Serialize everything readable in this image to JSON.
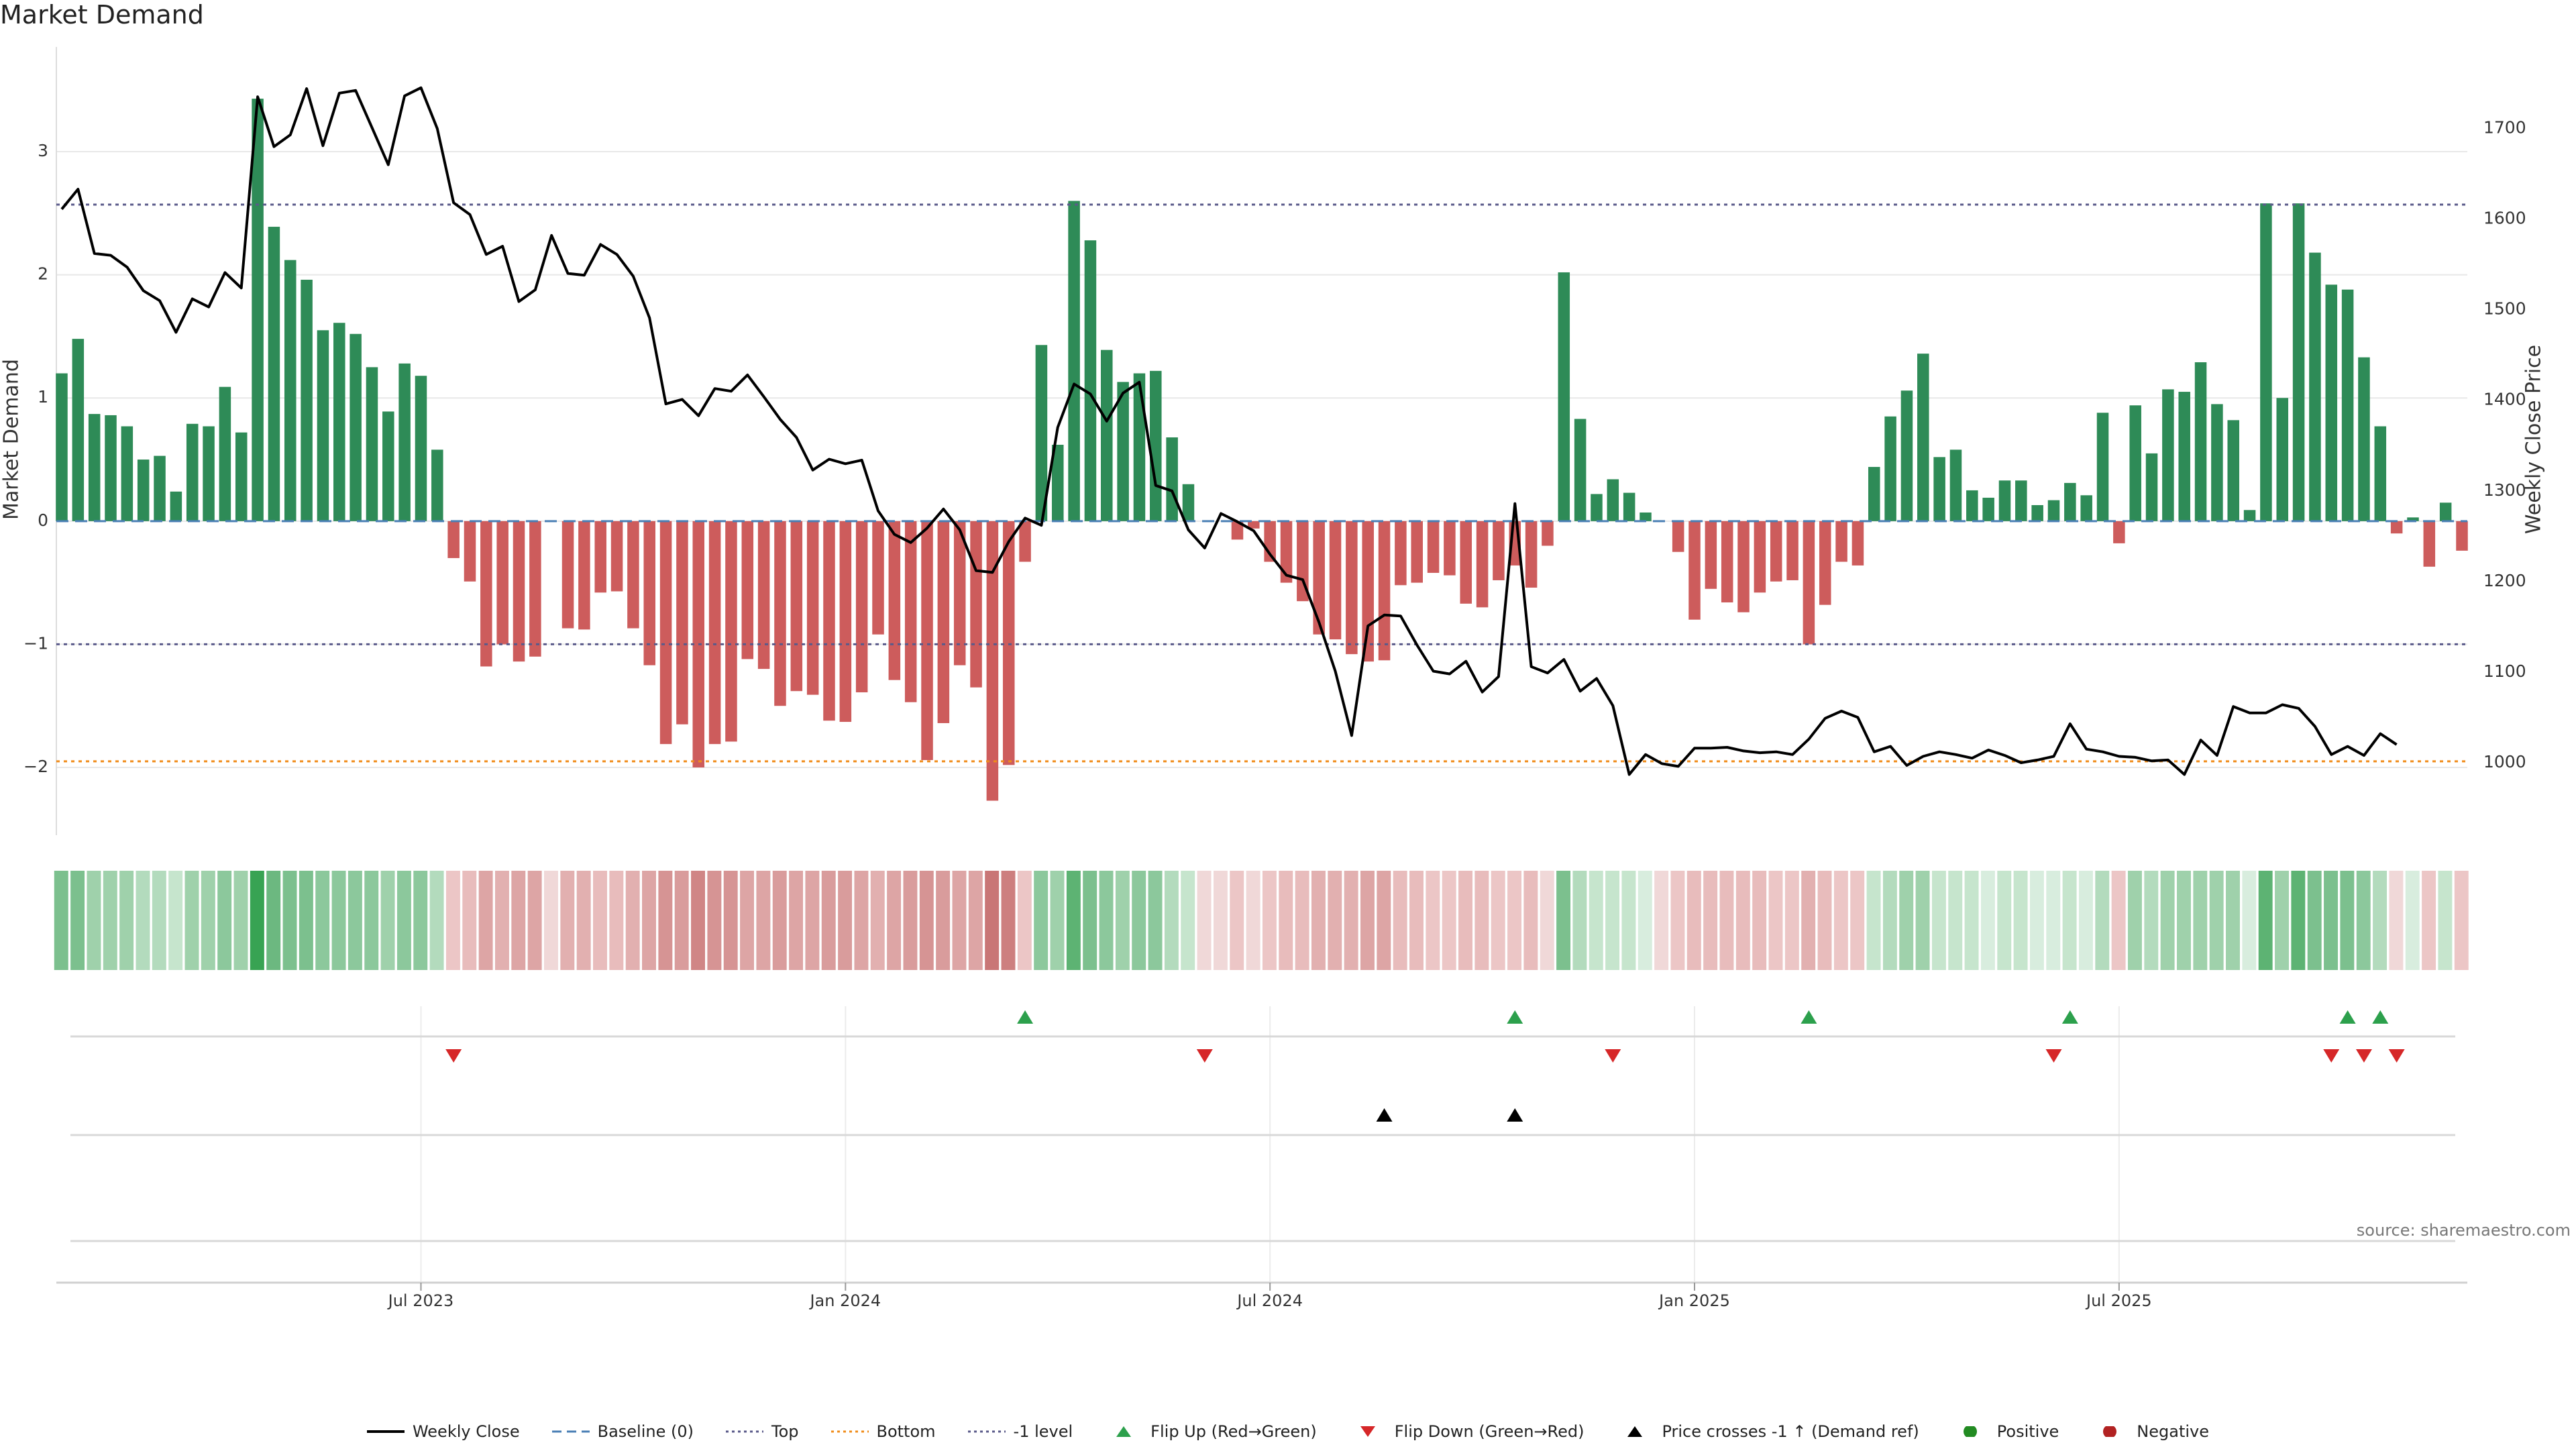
{
  "chart_data": {
    "type": "bar",
    "title": "Market Demand",
    "ylabel_left": "Market Demand",
    "ylabel_right": "Weekly Close Price",
    "source": "source: sharemaestro.com",
    "ylim_left": [
      -2.55,
      3.85
    ],
    "ylim_right": [
      920,
      1790
    ],
    "yticks_left": [
      -2,
      -1,
      0,
      1,
      2,
      3
    ],
    "ytick_labels_left": [
      "−2",
      "−1",
      "0",
      "1",
      "2",
      "3"
    ],
    "yticks_right": [
      1000,
      1100,
      1200,
      1300,
      1400,
      1500,
      1600,
      1700
    ],
    "ytick_labels_right": [
      "1000",
      "1100",
      "1200",
      "1300",
      "1400",
      "1500",
      "1600",
      "1700"
    ],
    "x_ticks": [
      {
        "label": "Jul 2023",
        "week": 22
      },
      {
        "label": "Jan 2024",
        "week": 48
      },
      {
        "label": "Jul 2024",
        "week": 74
      },
      {
        "label": "Jan 2025",
        "week": 100
      },
      {
        "label": "Jul 2025",
        "week": 126
      }
    ],
    "reference_lines": {
      "baseline": 0,
      "top": 2.57,
      "bottom": -1.95,
      "minus_one": -1.0
    },
    "series": [
      {
        "name": "Market Demand",
        "values": [
          1.2,
          1.48,
          0.87,
          0.86,
          0.77,
          0.5,
          0.53,
          0.24,
          0.79,
          0.77,
          1.09,
          0.72,
          3.43,
          2.39,
          2.12,
          1.96,
          1.55,
          1.61,
          1.52,
          1.25,
          0.89,
          1.28,
          1.18,
          0.58,
          -0.3,
          -0.49,
          -1.18,
          -1.0,
          -1.14,
          -1.1,
          0,
          -0.87,
          -0.88,
          -0.58,
          -0.57,
          -0.87,
          -1.17,
          -1.81,
          -1.65,
          -2.0,
          -1.81,
          -1.79,
          -1.12,
          -1.2,
          -1.5,
          -1.38,
          -1.41,
          -1.62,
          -1.63,
          -1.39,
          -0.92,
          -1.29,
          -1.47,
          -1.94,
          -1.64,
          -1.17,
          -1.35,
          -2.27,
          -1.98,
          -0.33,
          1.43,
          0.62,
          2.6,
          2.28,
          1.39,
          1.13,
          1.2,
          1.22,
          0.68,
          0.3,
          0,
          0,
          -0.15,
          -0.06,
          -0.33,
          -0.5,
          -0.65,
          -0.92,
          -0.96,
          -1.08,
          -1.14,
          -1.13,
          -0.52,
          -0.5,
          -0.42,
          -0.44,
          -0.67,
          -0.7,
          -0.48,
          -0.36,
          -0.54,
          -0.2,
          2.02,
          0.83,
          0.22,
          0.34,
          0.23,
          0.07,
          0,
          -0.25,
          -0.8,
          -0.55,
          -0.66,
          -0.74,
          -0.58,
          -0.49,
          -0.48,
          -1.0,
          -0.68,
          -0.33,
          -0.36,
          0.44,
          0.85,
          1.06,
          1.36,
          0.52,
          0.58,
          0.25,
          0.19,
          0.33,
          0.33,
          0.13,
          0.17,
          0.31,
          0.21,
          0.88,
          -0.18,
          0.94,
          0.55,
          1.07,
          1.05,
          1.29,
          0.95,
          0.82,
          0.09,
          2.58,
          1.0,
          2.58,
          2.18,
          1.92,
          1.88,
          1.33,
          0.77,
          -0.1,
          0.03,
          -0.37,
          0.15,
          -0.24
        ]
      },
      {
        "name": "Weekly Close",
        "values": [
          1611,
          1633,
          1562,
          1560,
          1547,
          1521,
          1510,
          1475,
          1512,
          1503,
          1541,
          1524,
          1735,
          1680,
          1693,
          1744,
          1681,
          1739,
          1742,
          1701,
          1660,
          1736,
          1745,
          1700,
          1618,
          1605,
          1561,
          1570,
          1509,
          1522,
          1582,
          1540,
          1538,
          1572,
          1561,
          1537,
          1491,
          1396,
          1401,
          1383,
          1413,
          1410,
          1428,
          1404,
          1379,
          1359,
          1323,
          1335,
          1330,
          1334,
          1278,
          1252,
          1243,
          1259,
          1280,
          1257,
          1212,
          1210,
          1244,
          1270,
          1262,
          1370,
          1418,
          1407,
          1377,
          1408,
          1420,
          1306,
          1300,
          1257,
          1237,
          1275,
          1266,
          1256,
          1230,
          1207,
          1202,
          1155,
          1101,
          1030,
          1151,
          1163,
          1162,
          1130,
          1101,
          1098,
          1112,
          1078,
          1095,
          1286,
          1106,
          1099,
          1114,
          1079,
          1093,
          1063,
          987,
          1009,
          999,
          996,
          1016,
          1016,
          1017,
          1013,
          1011,
          1012,
          1009,
          1026,
          1049,
          1057,
          1050,
          1012,
          1018,
          997,
          1007,
          1012,
          1009,
          1005,
          1014,
          1008,
          1000,
          1003,
          1007,
          1043,
          1015,
          1012,
          1007,
          1006,
          1002,
          1003,
          987,
          1025,
          1008,
          1062,
          1055,
          1055,
          1064,
          1060,
          1040,
          1009,
          1018,
          1008,
          1032,
          1020
        ]
      }
    ],
    "regime_strip": [
      {
        "color": "#7cc08e"
      },
      {
        "color": "#7cc08e"
      },
      {
        "color": "#9fd1ab"
      },
      {
        "color": "#9fd1ab"
      },
      {
        "color": "#9fd1ab"
      },
      {
        "color": "#b3dbbd"
      },
      {
        "color": "#b3dbbd"
      },
      {
        "color": "#c6e5cd"
      },
      {
        "color": "#9fd1ab"
      },
      {
        "color": "#9fd1ab"
      },
      {
        "color": "#8cc89c"
      },
      {
        "color": "#9fd1ab"
      },
      {
        "color": "#38a353"
      },
      {
        "color": "#6cb880"
      },
      {
        "color": "#7cc08e"
      },
      {
        "color": "#7cc08e"
      },
      {
        "color": "#8cc89c"
      },
      {
        "color": "#8cc89c"
      },
      {
        "color": "#8cc89c"
      },
      {
        "color": "#8cc89c"
      },
      {
        "color": "#9fd1ab"
      },
      {
        "color": "#8cc89c"
      },
      {
        "color": "#8cc89c"
      },
      {
        "color": "#b3dbbd"
      },
      {
        "color": "#ecc6c6"
      },
      {
        "color": "#e8bcbc"
      },
      {
        "color": "#dda5a5"
      },
      {
        "color": "#e2b0b0"
      },
      {
        "color": "#dda5a5"
      },
      {
        "color": "#dda5a5"
      },
      {
        "color": "#f0d8d8"
      },
      {
        "color": "#e2b0b0"
      },
      {
        "color": "#e2b0b0"
      },
      {
        "color": "#e8bcbc"
      },
      {
        "color": "#e8bcbc"
      },
      {
        "color": "#e2b0b0"
      },
      {
        "color": "#dda5a5"
      },
      {
        "color": "#d69494"
      },
      {
        "color": "#d99c9c"
      },
      {
        "color": "#d08686"
      },
      {
        "color": "#d69494"
      },
      {
        "color": "#d69494"
      },
      {
        "color": "#dda5a5"
      },
      {
        "color": "#dda5a5"
      },
      {
        "color": "#d99c9c"
      },
      {
        "color": "#dda5a5"
      },
      {
        "color": "#dda5a5"
      },
      {
        "color": "#d99c9c"
      },
      {
        "color": "#d99c9c"
      },
      {
        "color": "#dda5a5"
      },
      {
        "color": "#e2b0b0"
      },
      {
        "color": "#dda5a5"
      },
      {
        "color": "#d99c9c"
      },
      {
        "color": "#d69494"
      },
      {
        "color": "#d99c9c"
      },
      {
        "color": "#dda5a5"
      },
      {
        "color": "#dda5a5"
      },
      {
        "color": "#c97676"
      },
      {
        "color": "#cd7f7f"
      },
      {
        "color": "#ecc6c6"
      },
      {
        "color": "#8cc89c"
      },
      {
        "color": "#9fd1ab"
      },
      {
        "color": "#5db373"
      },
      {
        "color": "#7cc08e"
      },
      {
        "color": "#8cc89c"
      },
      {
        "color": "#9fd1ab"
      },
      {
        "color": "#8cc89c"
      },
      {
        "color": "#8cc89c"
      },
      {
        "color": "#b3dbbd"
      },
      {
        "color": "#c6e5cd"
      },
      {
        "color": "#f0d8d8"
      },
      {
        "color": "#f0d8d8"
      },
      {
        "color": "#ecc6c6"
      },
      {
        "color": "#f0d8d8"
      },
      {
        "color": "#ecc6c6"
      },
      {
        "color": "#e8bcbc"
      },
      {
        "color": "#e8bcbc"
      },
      {
        "color": "#e2b0b0"
      },
      {
        "color": "#e2b0b0"
      },
      {
        "color": "#e2b0b0"
      },
      {
        "color": "#dda5a5"
      },
      {
        "color": "#dda5a5"
      },
      {
        "color": "#e8bcbc"
      },
      {
        "color": "#e8bcbc"
      },
      {
        "color": "#ecc6c6"
      },
      {
        "color": "#ecc6c6"
      },
      {
        "color": "#e8bcbc"
      },
      {
        "color": "#e8bcbc"
      },
      {
        "color": "#ecc6c6"
      },
      {
        "color": "#ecc6c6"
      },
      {
        "color": "#e8bcbc"
      },
      {
        "color": "#f0d8d8"
      },
      {
        "color": "#7cc08e"
      },
      {
        "color": "#b3dbbd"
      },
      {
        "color": "#c6e5cd"
      },
      {
        "color": "#c6e5cd"
      },
      {
        "color": "#c6e5cd"
      },
      {
        "color": "#d8edde"
      },
      {
        "color": "#f0d8d8"
      },
      {
        "color": "#ecc6c6"
      },
      {
        "color": "#e8bcbc"
      },
      {
        "color": "#e8bcbc"
      },
      {
        "color": "#e8bcbc"
      },
      {
        "color": "#e8bcbc"
      },
      {
        "color": "#e8bcbc"
      },
      {
        "color": "#ecc6c6"
      },
      {
        "color": "#ecc6c6"
      },
      {
        "color": "#e2b0b0"
      },
      {
        "color": "#e8bcbc"
      },
      {
        "color": "#ecc6c6"
      },
      {
        "color": "#ecc6c6"
      },
      {
        "color": "#c6e5cd"
      },
      {
        "color": "#b3dbbd"
      },
      {
        "color": "#9fd1ab"
      },
      {
        "color": "#9fd1ab"
      },
      {
        "color": "#c6e5cd"
      },
      {
        "color": "#c6e5cd"
      },
      {
        "color": "#c6e5cd"
      },
      {
        "color": "#d8edde"
      },
      {
        "color": "#c6e5cd"
      },
      {
        "color": "#c6e5cd"
      },
      {
        "color": "#d8edde"
      },
      {
        "color": "#d8edde"
      },
      {
        "color": "#c6e5cd"
      },
      {
        "color": "#d8edde"
      },
      {
        "color": "#b3dbbd"
      },
      {
        "color": "#ecc6c6"
      },
      {
        "color": "#9fd1ab"
      },
      {
        "color": "#b3dbbd"
      },
      {
        "color": "#9fd1ab"
      },
      {
        "color": "#9fd1ab"
      },
      {
        "color": "#9fd1ab"
      },
      {
        "color": "#9fd1ab"
      },
      {
        "color": "#9fd1ab"
      },
      {
        "color": "#d8edde"
      },
      {
        "color": "#5db373"
      },
      {
        "color": "#9fd1ab"
      },
      {
        "color": "#5db373"
      },
      {
        "color": "#7cc08e"
      },
      {
        "color": "#7cc08e"
      },
      {
        "color": "#7cc08e"
      },
      {
        "color": "#8cc89c"
      },
      {
        "color": "#b3dbbd"
      },
      {
        "color": "#f0d8d8"
      },
      {
        "color": "#d8edde"
      },
      {
        "color": "#ecc6c6"
      },
      {
        "color": "#c6e5cd"
      },
      {
        "color": "#ecc6c6"
      }
    ],
    "flip_up_weeks": [
      59,
      89,
      107,
      123,
      140,
      142
    ],
    "flip_down_weeks": [
      24,
      70,
      95,
      122,
      139,
      141,
      143
    ],
    "price_cross_weeks": [
      81,
      89
    ],
    "legend": [
      {
        "label": "Weekly Close",
        "kind": "line",
        "color": "#000000"
      },
      {
        "label": "Baseline (0)",
        "kind": "dashed",
        "color": "#4a7fb5"
      },
      {
        "label": "Top",
        "kind": "dotted",
        "color": "#5a5a8a"
      },
      {
        "label": "Bottom",
        "kind": "dotted",
        "color": "#f08c1a"
      },
      {
        "label": "-1 level",
        "kind": "dotted",
        "color": "#5a5a8a"
      },
      {
        "label": "Flip Up (Red→Green)",
        "kind": "tri-up",
        "color": "#2ca04c"
      },
      {
        "label": "Flip Down (Green→Red)",
        "kind": "tri-down",
        "color": "#d62728"
      },
      {
        "label": "Price crosses -1 ↑ (Demand ref)",
        "kind": "tri-up",
        "color": "#000000"
      },
      {
        "label": "Positive",
        "kind": "dot",
        "color": "#228b22"
      },
      {
        "label": "Negative",
        "kind": "dot",
        "color": "#b22222"
      }
    ],
    "colors": {
      "positive": "#2e8b57",
      "negative": "#cd5c5c",
      "price": "#000000",
      "top": "#5a5a8a",
      "bottom": "#f08c1a",
      "baseline": "#4a7fb5",
      "grid": "#e8e8e8"
    }
  }
}
